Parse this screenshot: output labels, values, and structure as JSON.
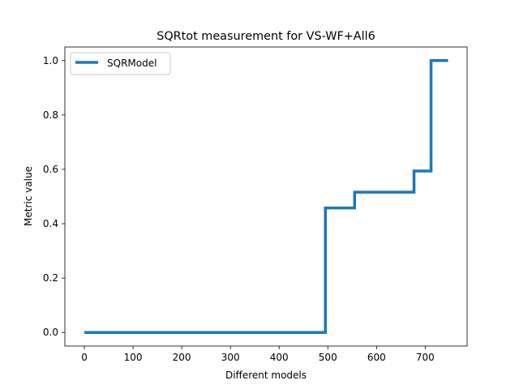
{
  "chart_data": {
    "type": "line",
    "title": "SQRtot measurement for VS-WF+All6",
    "xlabel": "Different models",
    "ylabel": "Metric value",
    "xlim": [
      -40,
      786
    ],
    "ylim": [
      -0.05,
      1.05
    ],
    "xticks": [
      0,
      100,
      200,
      300,
      400,
      500,
      600,
      700
    ],
    "yticks": [
      0.0,
      0.2,
      0.4,
      0.6,
      0.8,
      1.0
    ],
    "xtick_labels": [
      "0",
      "100",
      "200",
      "300",
      "400",
      "500",
      "600",
      "700"
    ],
    "ytick_labels": [
      "0.0",
      "0.2",
      "0.4",
      "0.6",
      "0.8",
      "1.0"
    ],
    "grid": false,
    "legend": "top-left",
    "series": [
      {
        "name": "SQRModel",
        "color": "#1f77b4",
        "x": [
          0,
          495,
          495,
          555,
          555,
          677,
          677,
          712,
          712,
          747
        ],
        "y": [
          0.0,
          0.0,
          0.458,
          0.458,
          0.516,
          0.516,
          0.594,
          0.594,
          1.0,
          1.0
        ]
      }
    ]
  }
}
